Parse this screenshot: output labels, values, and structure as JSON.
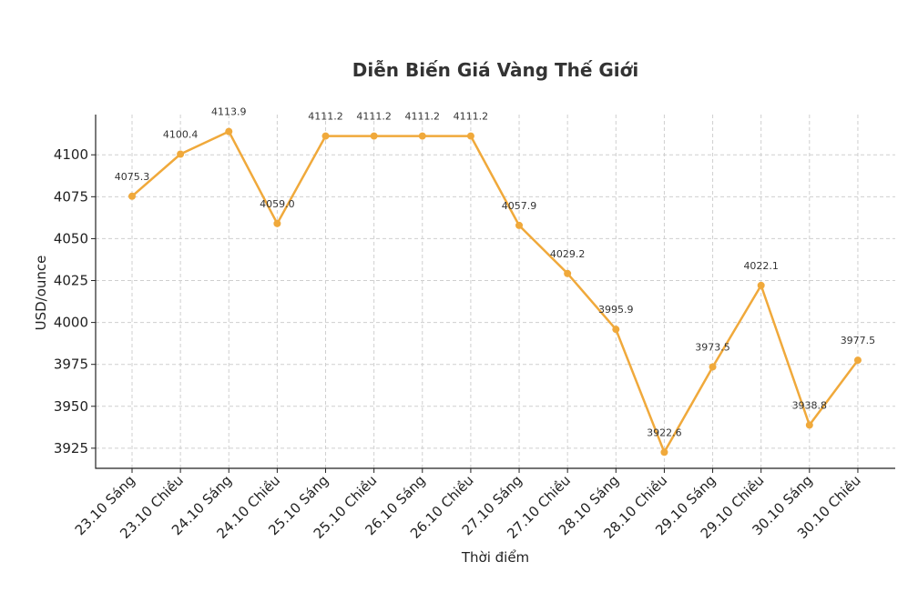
{
  "chart_data": {
    "type": "line",
    "title": "Diễn Biến Giá Vàng Thế Giới",
    "xlabel": "Thời điểm",
    "ylabel": "USD/ounce",
    "categories": [
      "23.10 Sáng",
      "23.10 Chiều",
      "24.10 Sáng",
      "24.10 Chiều",
      "25.10 Sáng",
      "25.10 Chiều",
      "26.10 Sáng",
      "26.10 Chiều",
      "27.10 Sáng",
      "27.10 Chiều",
      "28.10 Sáng",
      "28.10 Chiều",
      "29.10 Sáng",
      "29.10 Chiều",
      "30.10 Sáng",
      "30.10 Chiều"
    ],
    "values": [
      4075.3,
      4100.4,
      4113.9,
      4059.0,
      4111.2,
      4111.2,
      4111.2,
      4111.2,
      4057.9,
      4029.2,
      3995.9,
      3922.6,
      3973.5,
      4022.1,
      3938.8,
      3977.5
    ],
    "data_labels": [
      "4075.3",
      "4100.4",
      "4113.9",
      "4059.0",
      "4111.2",
      "4111.2",
      "4111.2",
      "4111.2",
      "4057.9",
      "4029.2",
      "3995.9",
      "3922.6",
      "3973.5",
      "4022.1",
      "3938.8",
      "3977.5"
    ],
    "yticks": [
      3925,
      3950,
      3975,
      4000,
      4025,
      4050,
      4075,
      4100
    ],
    "ylim": [
      3913,
      4124
    ],
    "grid": true,
    "color": "#f0a93b"
  }
}
